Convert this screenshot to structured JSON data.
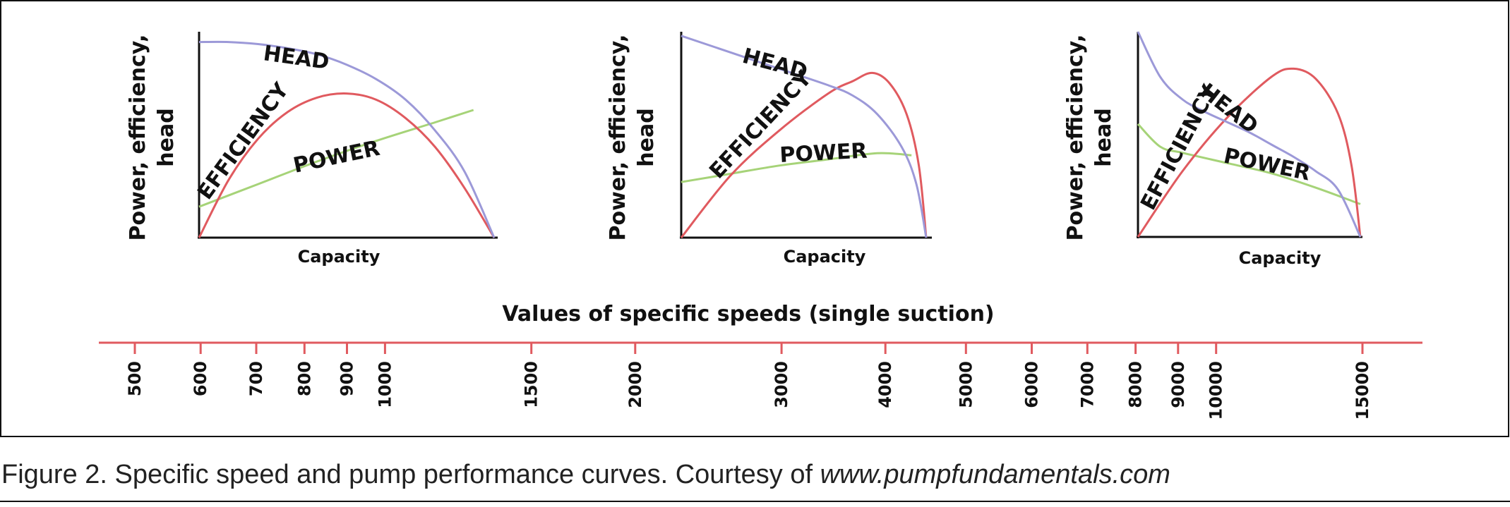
{
  "chart_data": [
    {
      "type": "line",
      "title": "",
      "xlabel": "Capacity",
      "ylabel": "Power, efficiency, head",
      "series": [
        {
          "name": "HEAD",
          "x": [
            0,
            0.1,
            0.2,
            0.3,
            0.4,
            0.5,
            0.6,
            0.7,
            0.8,
            0.9,
            1.0
          ],
          "values": [
            0.95,
            0.95,
            0.94,
            0.92,
            0.89,
            0.84,
            0.77,
            0.67,
            0.52,
            0.32,
            0.0
          ]
        },
        {
          "name": "EFFICIENCY",
          "x": [
            0,
            0.1,
            0.2,
            0.3,
            0.4,
            0.5,
            0.6,
            0.7,
            0.8,
            0.9,
            1.0
          ],
          "values": [
            0.0,
            0.28,
            0.48,
            0.61,
            0.68,
            0.7,
            0.67,
            0.58,
            0.44,
            0.24,
            0.0
          ]
        },
        {
          "name": "POWER",
          "x": [
            0,
            0.2,
            0.4,
            0.6,
            0.8,
            0.93
          ],
          "values": [
            0.15,
            0.26,
            0.37,
            0.47,
            0.56,
            0.62
          ]
        }
      ]
    },
    {
      "type": "line",
      "title": "",
      "xlabel": "Capacity",
      "ylabel": "Power, efficiency, head",
      "series": [
        {
          "name": "HEAD",
          "x": [
            0,
            0.2,
            0.4,
            0.6,
            0.7,
            0.8,
            0.9,
            0.96,
            1.0
          ],
          "values": [
            0.98,
            0.9,
            0.82,
            0.74,
            0.69,
            0.6,
            0.44,
            0.26,
            0.0
          ]
        },
        {
          "name": "EFFICIENCY",
          "x": [
            0,
            0.2,
            0.4,
            0.6,
            0.7,
            0.78,
            0.85,
            0.92,
            0.97,
            1.0
          ],
          "values": [
            0.0,
            0.3,
            0.52,
            0.7,
            0.76,
            0.8,
            0.75,
            0.6,
            0.35,
            0.0
          ]
        },
        {
          "name": "POWER",
          "x": [
            0,
            0.2,
            0.4,
            0.6,
            0.8,
            0.94
          ],
          "values": [
            0.27,
            0.31,
            0.35,
            0.38,
            0.41,
            0.4
          ]
        }
      ]
    },
    {
      "type": "line",
      "title": "",
      "xlabel": "Capacity",
      "ylabel": "Power, efficiency, head",
      "series": [
        {
          "name": "HEAD",
          "x": [
            0,
            0.1,
            0.2,
            0.3,
            0.4,
            0.5,
            0.6,
            0.7,
            0.8,
            0.9,
            1.0
          ],
          "values": [
            1.0,
            0.78,
            0.67,
            0.61,
            0.56,
            0.51,
            0.45,
            0.39,
            0.32,
            0.23,
            0.0
          ]
        },
        {
          "name": "EFFICIENCY",
          "x": [
            0,
            0.2,
            0.4,
            0.6,
            0.7,
            0.8,
            0.9,
            0.96,
            1.0
          ],
          "values": [
            0.0,
            0.32,
            0.58,
            0.78,
            0.82,
            0.77,
            0.6,
            0.35,
            0.0
          ]
        },
        {
          "name": "POWER",
          "x": [
            0,
            0.1,
            0.2,
            0.4,
            0.6,
            0.8,
            1.0
          ],
          "values": [
            0.55,
            0.44,
            0.41,
            0.36,
            0.31,
            0.24,
            0.16
          ]
        }
      ]
    }
  ],
  "scale": {
    "title": "Values of specific speeds (single suction)",
    "ticks": [
      "500",
      "600",
      "700",
      "800",
      "900",
      "1000",
      "1500",
      "2000",
      "3000",
      "4000",
      "5000",
      "6000",
      "7000",
      "8000",
      "9000",
      "10000",
      "15000"
    ]
  },
  "colors": {
    "head": "#9c99d8",
    "efficiency": "#e05a5f",
    "power": "#a6d378",
    "scale": "#e05a5f",
    "axis": "#111111"
  },
  "caption": {
    "text": "Figure 2. Specific speed and pump performance curves. Courtesy of ",
    "link": "www.pumpfundamentals.com"
  }
}
